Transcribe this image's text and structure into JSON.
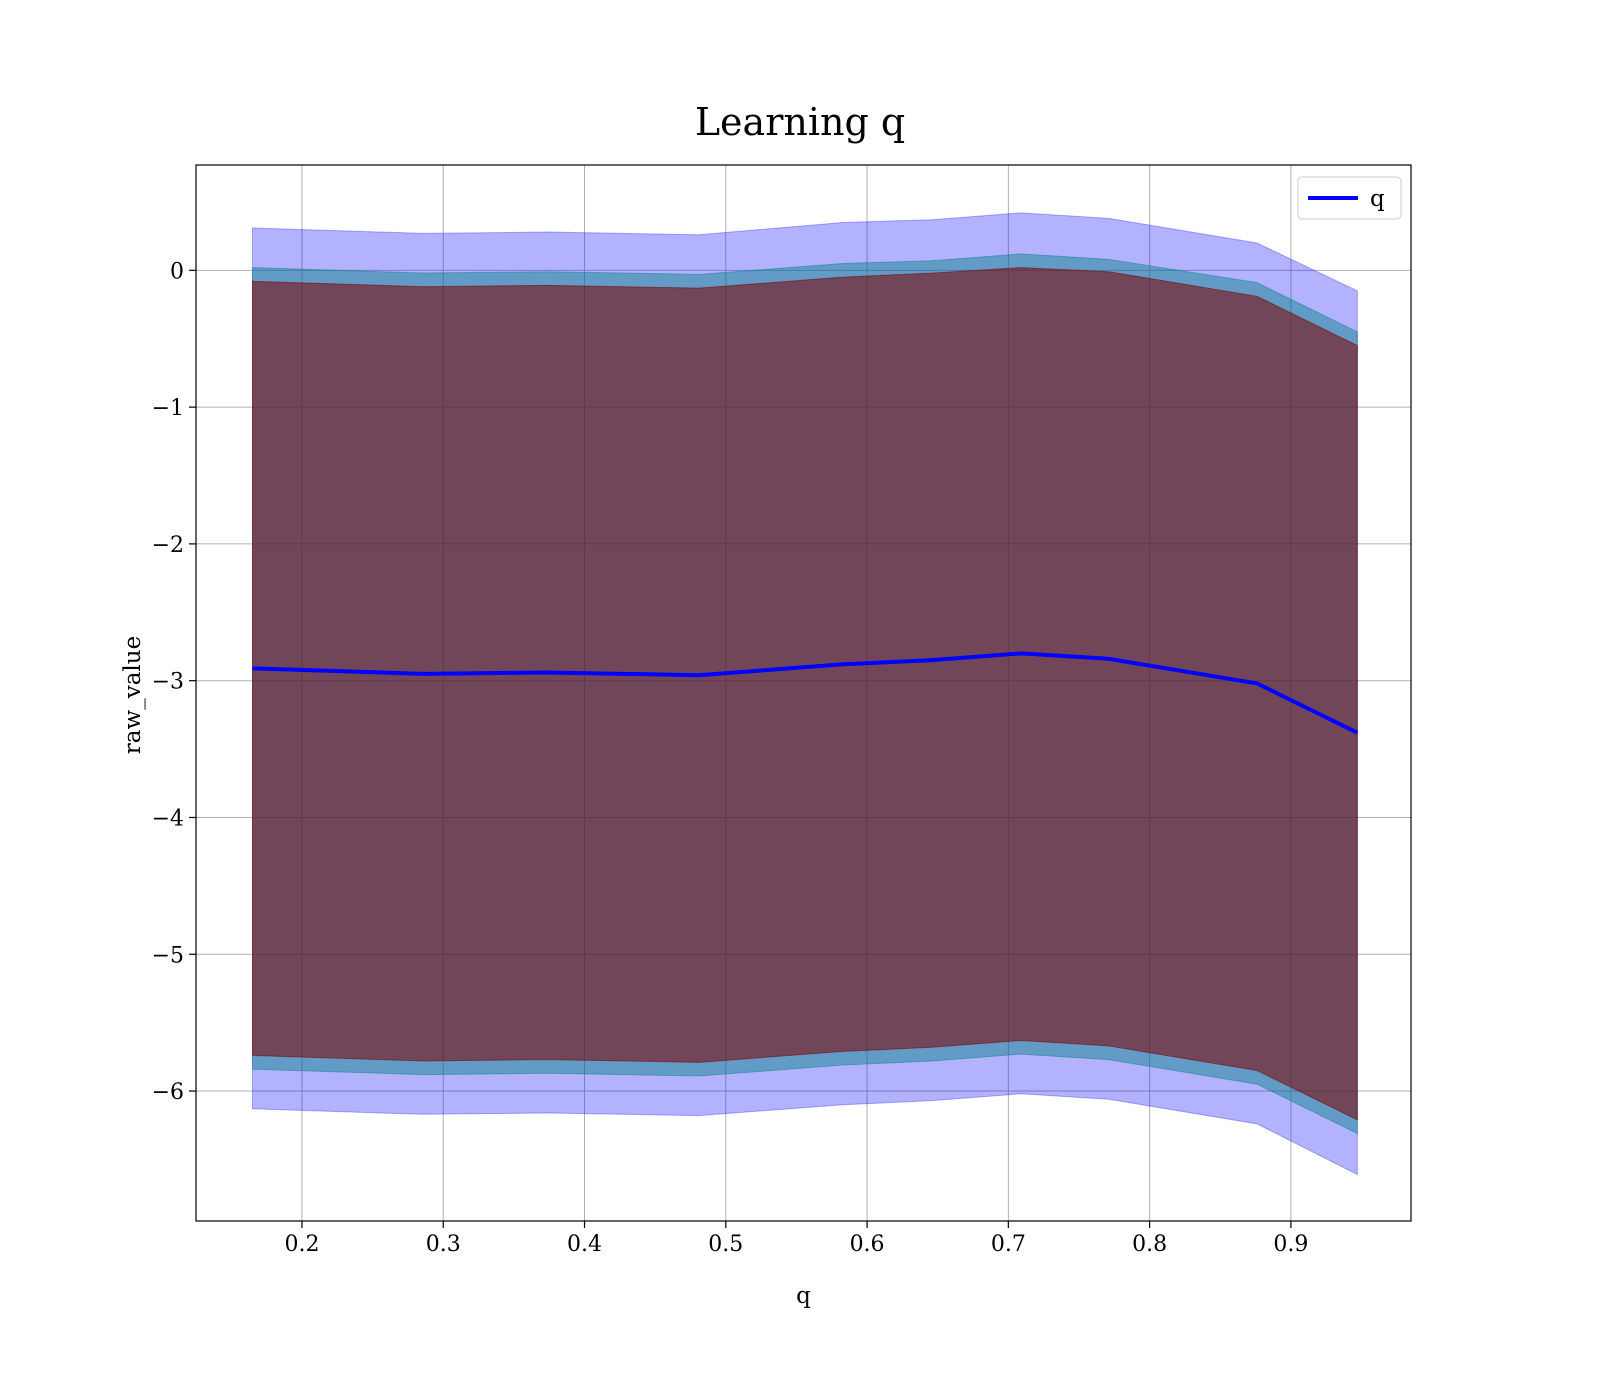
{
  "chart_data": {
    "type": "line",
    "title": "Learning q",
    "xlabel": "q",
    "ylabel": "raw_value",
    "xlim": [
      0.125,
      0.985
    ],
    "ylim": [
      -6.95,
      0.77
    ],
    "xticks": [
      0.2,
      0.3,
      0.4,
      0.5,
      0.6,
      0.7,
      0.8,
      0.9
    ],
    "xtick_labels": [
      "0.2",
      "0.3",
      "0.4",
      "0.5",
      "0.6",
      "0.7",
      "0.8",
      "0.9"
    ],
    "yticks": [
      0,
      -1,
      -2,
      -3,
      -4,
      -5,
      -6
    ],
    "ytick_labels": [
      "0",
      "−1",
      "−2",
      "−3",
      "−4",
      "−5",
      "−6"
    ],
    "grid": true,
    "legend_position": "top-right",
    "x": [
      0.165,
      0.286,
      0.374,
      0.481,
      0.583,
      0.646,
      0.709,
      0.771,
      0.876,
      0.947
    ],
    "series": [
      {
        "name": "q",
        "color": "#0000ff",
        "values": [
          -2.91,
          -2.95,
          -2.94,
          -2.96,
          -2.88,
          -2.85,
          -2.8,
          -2.84,
          -3.02,
          -3.38
        ]
      }
    ],
    "bands": [
      {
        "color": "#0000ff",
        "opacity": 0.3,
        "upper": [
          0.31,
          0.27,
          0.28,
          0.26,
          0.35,
          0.37,
          0.42,
          0.38,
          0.2,
          -0.15
        ],
        "lower": [
          -6.13,
          -6.17,
          -6.16,
          -6.18,
          -6.1,
          -6.07,
          -6.02,
          -6.06,
          -6.24,
          -6.61
        ]
      },
      {
        "color": "#008080",
        "opacity": 0.45,
        "upper": [
          0.02,
          -0.02,
          -0.01,
          -0.03,
          0.05,
          0.07,
          0.12,
          0.08,
          -0.09,
          -0.45
        ],
        "lower": [
          -5.84,
          -5.88,
          -5.87,
          -5.89,
          -5.81,
          -5.78,
          -5.73,
          -5.77,
          -5.95,
          -6.31
        ]
      },
      {
        "color": "#800000",
        "opacity": 0.55,
        "upper": [
          -0.08,
          -0.12,
          -0.11,
          -0.13,
          -0.05,
          -0.02,
          0.02,
          -0.01,
          -0.19,
          -0.55
        ],
        "lower": [
          -5.74,
          -5.78,
          -5.77,
          -5.79,
          -5.71,
          -5.68,
          -5.63,
          -5.67,
          -5.85,
          -6.21
        ]
      }
    ]
  }
}
